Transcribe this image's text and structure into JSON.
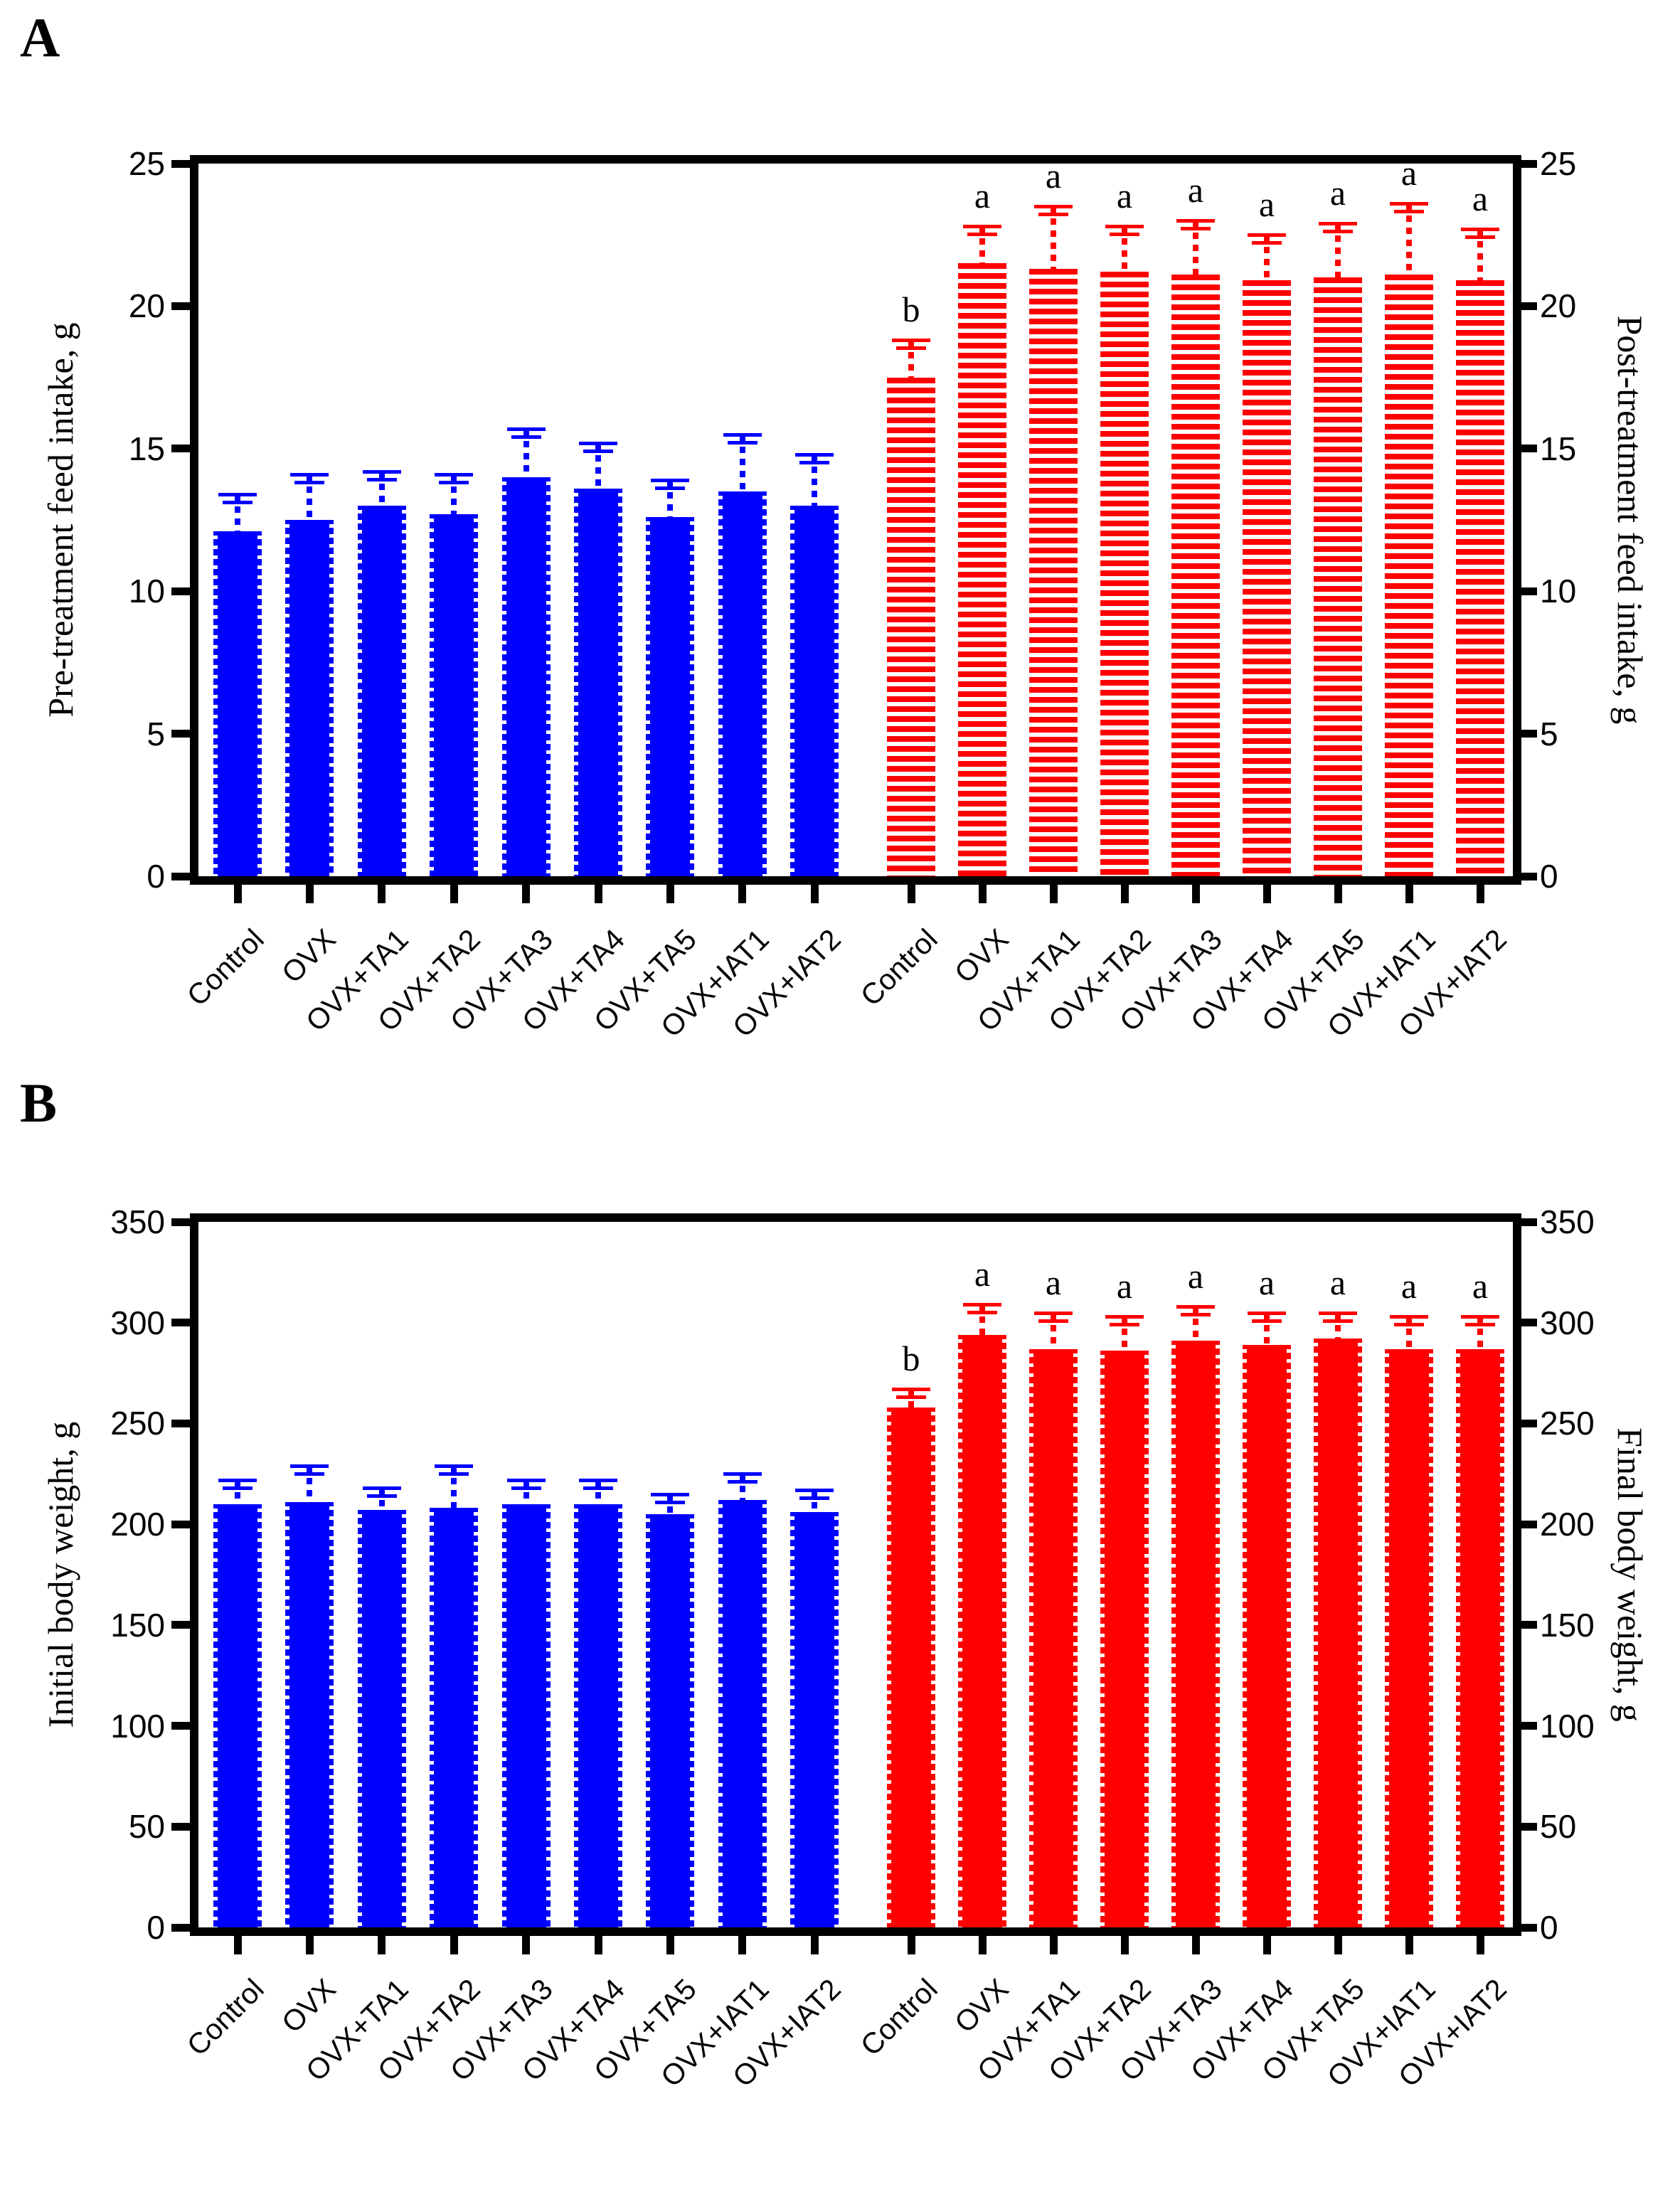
{
  "figure": {
    "background": "#ffffff",
    "significance_note_letters": [
      "a",
      "b"
    ]
  },
  "colors": {
    "pre_blue": "#0000ff",
    "post_red": "#ff0000",
    "axis_black": "#000000"
  },
  "chart_data": [
    {
      "panel_label": "A",
      "type": "bar",
      "grid": false,
      "categories": [
        "Control",
        "OVX",
        "OVX+TA1",
        "OVX+TA2",
        "OVX+TA3",
        "OVX+TA4",
        "OVX+TA5",
        "OVX+IAT1",
        "OVX+IAT2"
      ],
      "left_axis_title": "Pre-treatment feed intake, g",
      "right_axis_title": "Post-treatment feed intake, g",
      "ylim": [
        0,
        25
      ],
      "ytick_step": 5,
      "yticks": [
        0,
        5,
        10,
        15,
        20,
        25
      ],
      "series": [
        {
          "name": "Pre-treatment feed intake",
          "axis": "left",
          "color": "#0000ff",
          "fill": "solid",
          "values": [
            12.1,
            12.5,
            13.0,
            12.7,
            14.0,
            13.6,
            12.6,
            13.5,
            13.0
          ],
          "errors": [
            1.3,
            1.6,
            1.2,
            1.4,
            1.7,
            1.6,
            1.3,
            2.0,
            1.8
          ],
          "letters": [
            "",
            "",
            "",
            "",
            "",
            "",
            "",
            "",
            ""
          ]
        },
        {
          "name": "Post-treatment feed intake",
          "axis": "right",
          "color": "#ff0000",
          "fill": "striped",
          "values": [
            17.5,
            21.5,
            21.3,
            21.2,
            21.1,
            20.9,
            21.0,
            21.1,
            20.9
          ],
          "errors": [
            1.3,
            1.3,
            2.2,
            1.6,
            1.9,
            1.6,
            1.9,
            2.5,
            1.8
          ],
          "letters": [
            "b",
            "a",
            "a",
            "a",
            "a",
            "a",
            "a",
            "a",
            "a"
          ]
        }
      ]
    },
    {
      "panel_label": "B",
      "type": "bar",
      "grid": false,
      "categories": [
        "Control",
        "OVX",
        "OVX+TA1",
        "OVX+TA2",
        "OVX+TA3",
        "OVX+TA4",
        "OVX+TA5",
        "OVX+IAT1",
        "OVX+IAT2"
      ],
      "left_axis_title": "Initial body weight, g",
      "right_axis_title": "Final body weight, g",
      "ylim": [
        0,
        350
      ],
      "ytick_step": 50,
      "yticks": [
        0,
        50,
        100,
        150,
        200,
        250,
        300,
        350
      ],
      "series": [
        {
          "name": "Initial body weight",
          "axis": "left",
          "color": "#0000ff",
          "fill": "solid",
          "values": [
            210,
            211,
            207,
            208,
            210,
            210,
            205,
            212,
            206
          ],
          "errors": [
            12,
            18,
            11,
            21,
            12,
            12,
            10,
            13,
            11
          ],
          "letters": [
            "",
            "",
            "",
            "",
            "",
            "",
            "",
            "",
            ""
          ]
        },
        {
          "name": "Final body weight",
          "axis": "right",
          "color": "#ff0000",
          "fill": "solid",
          "values": [
            258,
            294,
            287,
            286,
            291,
            289,
            292,
            287,
            287
          ],
          "errors": [
            9,
            15,
            18,
            17,
            17,
            16,
            13,
            16,
            16
          ],
          "letters": [
            "b",
            "a",
            "a",
            "a",
            "a",
            "a",
            "a",
            "a",
            "a"
          ]
        }
      ]
    }
  ]
}
